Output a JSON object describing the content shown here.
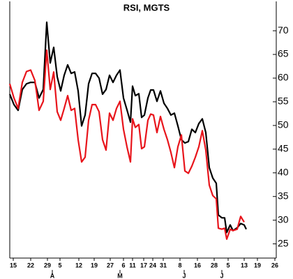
{
  "chart_data": {
    "type": "line",
    "title": "RSI, MGTS",
    "x": [
      0,
      1.2,
      2.4,
      3.6,
      4.8,
      6,
      7.2,
      8.4,
      9.6,
      10.6,
      11.6,
      12.6,
      13.6,
      14.6,
      15.6,
      16.6,
      17.6,
      18.6,
      19.6,
      20.6,
      21.6,
      22.6,
      23.6,
      24.6,
      25.6,
      26.6,
      27.6,
      28.6,
      29.6,
      30.6,
      31.6,
      32.6,
      33.6,
      34.6,
      35.2,
      36,
      37,
      37.8,
      38.6,
      39.6,
      40.4,
      41.2,
      42.2,
      43.2,
      44.2,
      45.2,
      46.2,
      47.2,
      48.2,
      49.2,
      50.2,
      51.2,
      52.2,
      53.2,
      54.2,
      55.2,
      56.2,
      57.2,
      58.2,
      59.2,
      59.8,
      60.8,
      61.6,
      62.2,
      63.2,
      64,
      65.2,
      66.2,
      67.2,
      67.8
    ],
    "series": [
      {
        "color": "#000000",
        "values": [
          56.6,
          54.4,
          53.2,
          57.6,
          58.8,
          59.1,
          59.1,
          55.8,
          57.6,
          71.8,
          63.2,
          66.5,
          60.3,
          57.3,
          60.6,
          62.8,
          61.0,
          61.3,
          57.3,
          49.9,
          52.2,
          58.8,
          61.0,
          61.0,
          60.0,
          56.6,
          57.6,
          60.6,
          59.1,
          60.6,
          61.7,
          55.8,
          53.3,
          50.7,
          58.3,
          56.3,
          56.7,
          51.7,
          52.2,
          55.8,
          57.5,
          57.5,
          55.1,
          57.3,
          54.7,
          53.6,
          52.2,
          52.6,
          49.9,
          47.0,
          46.3,
          46.6,
          49.2,
          48.5,
          50.4,
          51.4,
          48.5,
          41.1,
          38.9,
          37.8,
          31.1,
          30.5,
          30.5,
          27.4,
          29.0,
          27.8,
          28.4,
          29.3,
          29.0,
          28.1
        ]
      },
      {
        "color": "#e8141b",
        "values": [
          58.8,
          55.8,
          53.6,
          59.1,
          61.4,
          61.7,
          59.5,
          53.2,
          55.1,
          65.9,
          57.6,
          61.3,
          52.9,
          51.1,
          53.6,
          56.3,
          53.2,
          53.6,
          47.0,
          42.3,
          43.3,
          51.1,
          54.4,
          54.4,
          52.9,
          47.0,
          44.8,
          52.6,
          51.1,
          53.6,
          55.1,
          49.2,
          45.5,
          42.3,
          51.4,
          49.6,
          50.2,
          45.1,
          45.5,
          51.1,
          52.4,
          52.2,
          48.5,
          51.9,
          49.2,
          47.0,
          44.3,
          41.1,
          45.5,
          48.0,
          40.4,
          39.9,
          41.4,
          43.3,
          45.5,
          48.9,
          44.8,
          37.4,
          35.2,
          34.5,
          28.3,
          28.1,
          28.3,
          26.0,
          28.1,
          27.8,
          28.1,
          30.8,
          29.6,
          null
        ]
      }
    ],
    "xlim": [
      0,
      76.4
    ],
    "xticks": [
      {
        "value": 1,
        "label": "15"
      },
      {
        "value": 6,
        "label": "22"
      },
      {
        "value": 10.8,
        "label": "29"
      },
      {
        "value": 14.4,
        "label": "5"
      },
      {
        "value": 19.8,
        "label": "12"
      },
      {
        "value": 24.2,
        "label": "19"
      },
      {
        "value": 28.8,
        "label": "27"
      },
      {
        "value": 32.6,
        "label": "6"
      },
      {
        "value": 35.2,
        "label": "11"
      },
      {
        "value": 38.4,
        "label": "17"
      },
      {
        "value": 41,
        "label": "24"
      },
      {
        "value": 44,
        "label": "31"
      },
      {
        "value": 48.8,
        "label": "8"
      },
      {
        "value": 53.8,
        "label": "16"
      },
      {
        "value": 58.6,
        "label": "28"
      },
      {
        "value": 62.6,
        "label": "5"
      },
      {
        "value": 67.2,
        "label": "13"
      },
      {
        "value": 71,
        "label": "19"
      },
      {
        "value": 76,
        "label": "26"
      }
    ],
    "month_ticks": [
      {
        "value": 12.2,
        "label": "A"
      },
      {
        "value": 31.6,
        "label": "M"
      },
      {
        "value": 50,
        "label": "J"
      },
      {
        "value": 60.8,
        "label": "J"
      }
    ],
    "ylim": [
      22,
      76.2
    ],
    "yticks": [
      25,
      30,
      35,
      40,
      45,
      50,
      55,
      60,
      65,
      70
    ]
  }
}
